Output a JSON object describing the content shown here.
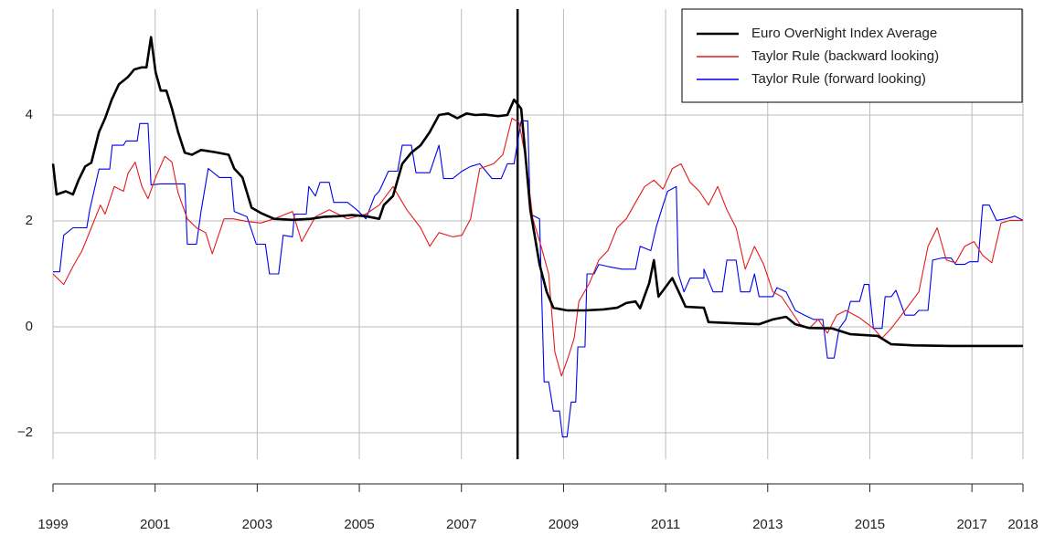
{
  "chart_data": {
    "type": "line",
    "xlim": [
      1999,
      2018
    ],
    "xticks": [
      1999,
      2001,
      2003,
      2005,
      2007,
      2009,
      2011,
      2013,
      2015,
      2017,
      2018
    ],
    "ylim": [
      -2.5,
      6
    ],
    "yticks": [
      {
        "value": -2,
        "label": "−2"
      },
      0,
      2,
      4
    ],
    "grid": true,
    "legend": "top-right",
    "vline": 2008.1,
    "series": [
      {
        "name": "Euro OverNight Index Average",
        "color": "#000000",
        "x": [
          1999.0,
          1999.07,
          1999.25,
          1999.39,
          1999.5,
          1999.63,
          1999.75,
          1999.9,
          2000.02,
          2000.15,
          2000.29,
          2000.47,
          2000.59,
          2000.74,
          2000.83,
          2000.92,
          2001.01,
          2001.11,
          2001.22,
          2001.33,
          2001.45,
          2001.58,
          2001.72,
          2001.9,
          2002.17,
          2002.44,
          2002.55,
          2002.71,
          2002.89,
          2003.07,
          2003.33,
          2003.69,
          2004.05,
          2004.32,
          2004.59,
          2004.86,
          2005.13,
          2005.39,
          2005.48,
          2005.66,
          2005.84,
          2006.02,
          2006.2,
          2006.38,
          2006.56,
          2006.74,
          2006.92,
          2007.1,
          2007.27,
          2007.45,
          2007.72,
          2007.9,
          2008.03,
          2008.17,
          2008.26,
          2008.35,
          2008.44,
          2008.53,
          2008.67,
          2008.8,
          2009.07,
          2009.42,
          2009.78,
          2010.05,
          2010.23,
          2010.41,
          2010.5,
          2010.68,
          2010.77,
          2010.86,
          2011.13,
          2011.3,
          2011.39,
          2011.75,
          2011.84,
          2012.29,
          2012.83,
          2013.1,
          2013.36,
          2013.54,
          2013.81,
          2014.26,
          2014.62,
          2015.15,
          2015.42,
          2015.87,
          2016.59,
          2018.0
        ],
        "values": [
          3.08,
          2.5,
          2.56,
          2.5,
          2.77,
          3.03,
          3.1,
          3.68,
          3.94,
          4.29,
          4.58,
          4.72,
          4.86,
          4.9,
          4.9,
          5.47,
          4.81,
          4.46,
          4.46,
          4.12,
          3.68,
          3.29,
          3.25,
          3.34,
          3.3,
          3.25,
          2.99,
          2.82,
          2.25,
          2.15,
          2.04,
          2.02,
          2.04,
          2.08,
          2.09,
          2.11,
          2.09,
          2.04,
          2.3,
          2.47,
          3.08,
          3.29,
          3.43,
          3.68,
          4.0,
          4.03,
          3.94,
          4.03,
          4.0,
          4.01,
          3.98,
          4.0,
          4.29,
          4.12,
          3.17,
          2.21,
          1.7,
          1.18,
          0.66,
          0.36,
          0.31,
          0.31,
          0.33,
          0.36,
          0.45,
          0.48,
          0.35,
          0.83,
          1.26,
          0.57,
          0.92,
          0.57,
          0.38,
          0.36,
          0.09,
          0.07,
          0.05,
          0.14,
          0.19,
          0.05,
          -0.02,
          -0.03,
          -0.14,
          -0.17,
          -0.33,
          -0.35,
          -0.36,
          -0.36
        ]
      },
      {
        "name": "Taylor Rule (backward looking)",
        "color": "#e41a1c",
        "x": [
          1999.0,
          1999.21,
          1999.39,
          1999.57,
          1999.75,
          1999.93,
          2000.02,
          2000.2,
          2000.38,
          2000.47,
          2000.61,
          2000.74,
          2000.86,
          2001.01,
          2001.19,
          2001.33,
          2001.45,
          2001.63,
          2001.81,
          2001.99,
          2002.12,
          2002.35,
          2002.53,
          2002.8,
          2003.07,
          2003.33,
          2003.69,
          2003.87,
          2004.14,
          2004.41,
          2004.77,
          2005.13,
          2005.39,
          2005.66,
          2005.93,
          2006.2,
          2006.38,
          2006.56,
          2006.83,
          2007.01,
          2007.18,
          2007.36,
          2007.63,
          2007.81,
          2007.99,
          2008.13,
          2008.26,
          2008.4,
          2008.56,
          2008.71,
          2008.83,
          2008.96,
          2009.1,
          2009.21,
          2009.3,
          2009.51,
          2009.69,
          2009.87,
          2010.05,
          2010.23,
          2010.41,
          2010.59,
          2010.77,
          2010.95,
          2011.13,
          2011.3,
          2011.48,
          2011.66,
          2011.84,
          2012.02,
          2012.2,
          2012.38,
          2012.56,
          2012.74,
          2012.92,
          2013.1,
          2013.27,
          2013.45,
          2013.63,
          2013.81,
          2013.99,
          2014.17,
          2014.35,
          2014.53,
          2014.8,
          2015.07,
          2015.24,
          2015.42,
          2015.69,
          2015.96,
          2016.14,
          2016.32,
          2016.5,
          2016.68,
          2016.86,
          2017.04,
          2017.21,
          2017.39,
          2017.57,
          2017.75,
          2018.0
        ],
        "values": [
          1.0,
          0.8,
          1.14,
          1.44,
          1.87,
          2.3,
          2.13,
          2.65,
          2.56,
          2.9,
          3.11,
          2.65,
          2.42,
          2.82,
          3.22,
          3.11,
          2.53,
          2.04,
          1.87,
          1.78,
          1.38,
          2.04,
          2.04,
          1.99,
          1.96,
          2.04,
          2.18,
          1.61,
          2.08,
          2.21,
          2.04,
          2.13,
          2.3,
          2.65,
          2.21,
          1.87,
          1.52,
          1.78,
          1.7,
          1.73,
          2.04,
          2.99,
          3.08,
          3.25,
          3.94,
          3.86,
          3.17,
          2.04,
          1.52,
          1.0,
          -0.47,
          -0.93,
          -0.55,
          -0.21,
          0.48,
          0.83,
          1.26,
          1.44,
          1.87,
          2.04,
          2.35,
          2.65,
          2.77,
          2.6,
          2.99,
          3.08,
          2.73,
          2.56,
          2.3,
          2.65,
          2.21,
          1.87,
          1.09,
          1.52,
          1.18,
          0.66,
          0.57,
          0.31,
          0.05,
          -0.03,
          0.14,
          -0.12,
          0.22,
          0.31,
          0.17,
          -0.03,
          -0.21,
          -0.03,
          0.31,
          0.66,
          1.52,
          1.87,
          1.26,
          1.21,
          1.52,
          1.61,
          1.35,
          1.21,
          1.96,
          2.01,
          2.01
        ]
      },
      {
        "name": "Taylor Rule (forward looking)",
        "color": "#0000ee",
        "x": [
          1999.0,
          1999.13,
          1999.21,
          1999.39,
          1999.66,
          1999.72,
          1999.9,
          2000.11,
          2000.16,
          2000.38,
          2000.43,
          2000.65,
          2000.7,
          2000.86,
          2000.92,
          2001.1,
          2001.58,
          2001.63,
          2001.81,
          2001.9,
          2002.04,
          2002.26,
          2002.49,
          2002.55,
          2002.8,
          2002.98,
          2003.16,
          2003.24,
          2003.42,
          2003.51,
          2003.69,
          2003.73,
          2003.96,
          2004.01,
          2004.14,
          2004.23,
          2004.41,
          2004.5,
          2004.77,
          2004.95,
          2005.13,
          2005.3,
          2005.39,
          2005.57,
          2005.75,
          2005.84,
          2006.02,
          2006.11,
          2006.38,
          2006.56,
          2006.65,
          2006.83,
          2007.01,
          2007.18,
          2007.36,
          2007.6,
          2007.78,
          2007.9,
          2008.03,
          2008.17,
          2008.3,
          2008.35,
          2008.53,
          2008.62,
          2008.71,
          2008.8,
          2008.92,
          2008.98,
          2009.07,
          2009.15,
          2009.24,
          2009.28,
          2009.42,
          2009.46,
          2009.6,
          2009.69,
          2009.87,
          2010.14,
          2010.41,
          2010.5,
          2010.71,
          2010.82,
          2010.95,
          2011.04,
          2011.21,
          2011.25,
          2011.36,
          2011.48,
          2011.75,
          2011.75,
          2011.93,
          2012.11,
          2012.2,
          2012.38,
          2012.47,
          2012.65,
          2012.74,
          2012.83,
          2013.1,
          2013.18,
          2013.36,
          2013.54,
          2013.72,
          2013.9,
          2014.08,
          2014.17,
          2014.3,
          2014.4,
          2014.53,
          2014.62,
          2014.8,
          2014.89,
          2014.98,
          2015.07,
          2015.24,
          2015.3,
          2015.42,
          2015.51,
          2015.69,
          2015.87,
          2015.96,
          2016.14,
          2016.23,
          2016.41,
          2016.59,
          2016.68,
          2016.86,
          2016.95,
          2017.12,
          2017.21,
          2017.34,
          2017.48,
          2017.66,
          2017.84,
          2018.0
        ],
        "values": [
          1.04,
          1.04,
          1.73,
          1.87,
          1.87,
          2.21,
          2.98,
          2.98,
          3.43,
          3.43,
          3.51,
          3.51,
          3.84,
          3.84,
          2.68,
          2.7,
          2.7,
          1.56,
          1.56,
          2.18,
          2.99,
          2.82,
          2.82,
          2.18,
          2.08,
          1.56,
          1.56,
          1.0,
          1.0,
          1.73,
          1.7,
          2.13,
          2.13,
          2.65,
          2.47,
          2.73,
          2.73,
          2.35,
          2.35,
          2.21,
          2.04,
          2.47,
          2.56,
          2.94,
          2.94,
          3.43,
          3.43,
          2.91,
          2.91,
          3.43,
          2.8,
          2.8,
          2.94,
          3.03,
          3.08,
          2.8,
          2.8,
          3.08,
          3.08,
          3.89,
          3.89,
          2.13,
          2.04,
          -1.04,
          -1.04,
          -1.59,
          -1.59,
          -2.08,
          -2.08,
          -1.42,
          -1.42,
          -0.38,
          -0.38,
          1.0,
          1.0,
          1.18,
          1.14,
          1.09,
          1.09,
          1.52,
          1.44,
          1.9,
          2.3,
          2.56,
          2.65,
          1.0,
          0.66,
          0.92,
          0.92,
          1.09,
          0.66,
          0.66,
          1.26,
          1.26,
          0.66,
          0.66,
          1.0,
          0.57,
          0.57,
          0.74,
          0.66,
          0.31,
          0.22,
          0.14,
          0.14,
          -0.59,
          -0.59,
          -0.03,
          0.14,
          0.48,
          0.48,
          0.8,
          0.8,
          -0.03,
          -0.03,
          0.57,
          0.57,
          0.69,
          0.22,
          0.22,
          0.31,
          0.31,
          1.26,
          1.3,
          1.3,
          1.18,
          1.18,
          1.23,
          1.23,
          2.3,
          2.3,
          2.01,
          2.04,
          2.09,
          2.01
        ]
      }
    ]
  }
}
